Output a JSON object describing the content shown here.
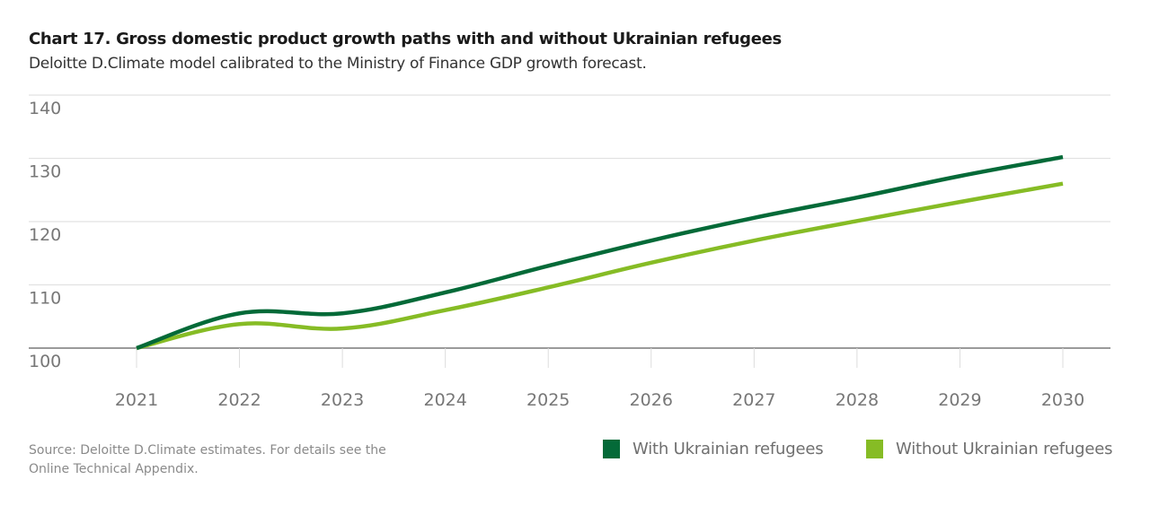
{
  "chart_data": {
    "type": "line",
    "title": "Chart 17. Gross domestic product growth paths with and without Ukrainian refugees",
    "subtitle": "Deloitte D.Climate model calibrated to the Ministry of Finance GDP growth forecast.",
    "xlabel": "",
    "ylabel": "",
    "x": [
      "2021",
      "2022",
      "2023",
      "2024",
      "2025",
      "2026",
      "2027",
      "2028",
      "2029",
      "2030"
    ],
    "ylim": [
      100,
      140
    ],
    "yticks": [
      "100",
      "110",
      "120",
      "130",
      "140"
    ],
    "grid": true,
    "legend_position": "bottom-right",
    "series": [
      {
        "name": "With Ukrainian refugees",
        "color": "#046A38",
        "values": [
          100,
          105.5,
          105.5,
          108.8,
          113.0,
          117.0,
          120.6,
          123.8,
          127.2,
          130.2
        ]
      },
      {
        "name": "Without Ukrainian refugees",
        "color": "#86BC25",
        "values": [
          100,
          103.8,
          103.1,
          106.0,
          109.6,
          113.5,
          117.0,
          120.1,
          123.1,
          126.0
        ]
      }
    ],
    "source": "Source: Deloitte D.Climate estimates. For details see the Online Technical Appendix."
  }
}
